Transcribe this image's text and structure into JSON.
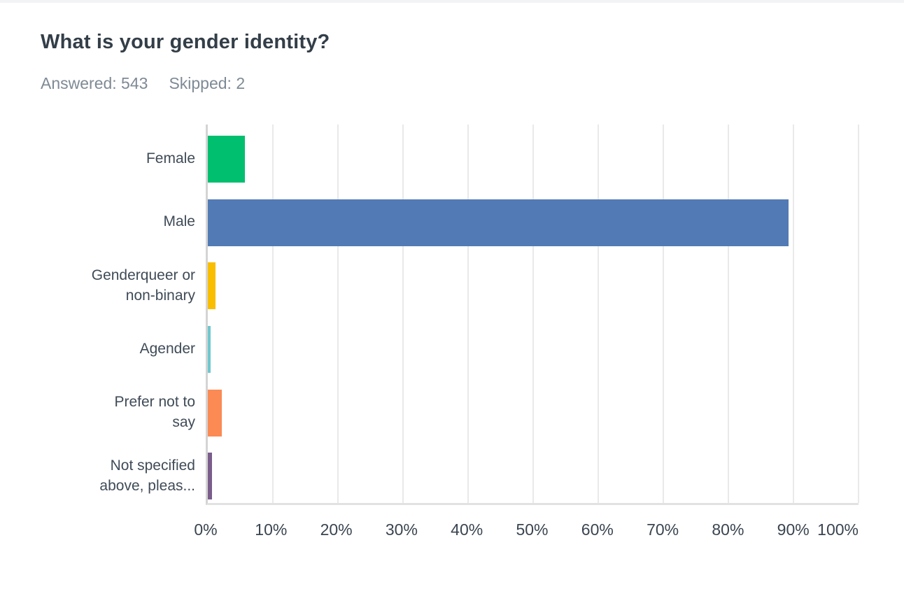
{
  "header": {
    "title": "What is your gender identity?",
    "answered_label": "Answered: 543",
    "skipped_label": "Skipped: 2"
  },
  "chart_data": {
    "type": "bar",
    "orientation": "horizontal",
    "title": "What is your gender identity?",
    "answered": 543,
    "skipped": 2,
    "categories": [
      "Female",
      "Male",
      "Genderqueer or\nnon-binary",
      "Agender",
      "Prefer not to\nsay",
      "Not specified\nabove, pleas..."
    ],
    "values": [
      5.7,
      89.2,
      1.2,
      0.4,
      2.2,
      0.6
    ],
    "unit": "%",
    "bar_colors": [
      "#00bf6f",
      "#527bb5",
      "#f9be00",
      "#6fc7cf",
      "#fb8a55",
      "#7b5d8c"
    ],
    "xlim": [
      0,
      100
    ],
    "x_ticks": [
      "0%",
      "10%",
      "20%",
      "30%",
      "40%",
      "50%",
      "60%",
      "70%",
      "80%",
      "90%",
      "100%"
    ],
    "grid": true,
    "legend": false
  },
  "colors": {
    "title_text": "#333e48",
    "meta_text": "#7e8a95",
    "axis_line": "#d4d4d4",
    "gridline": "#e9e9e9",
    "tick_text": "#3a4550",
    "label_text": "#3f4b57"
  }
}
